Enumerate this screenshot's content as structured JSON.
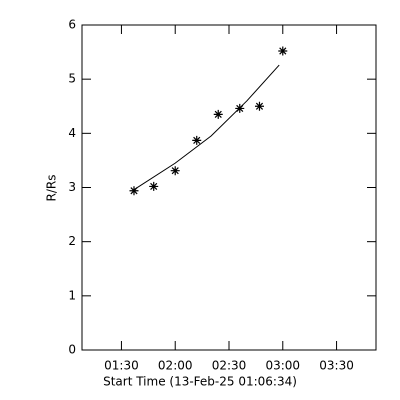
{
  "chart_data": {
    "type": "scatter",
    "xlabel": "Start Time (13-Feb-25 01:06:34)",
    "ylabel": "R/Rs",
    "xlim": [
      68,
      232
    ],
    "ylim": [
      0,
      6
    ],
    "xticks": [
      {
        "value": 90,
        "label": "01:30"
      },
      {
        "value": 120,
        "label": "02:00"
      },
      {
        "value": 150,
        "label": "02:30"
      },
      {
        "value": 180,
        "label": "03:00"
      },
      {
        "value": 210,
        "label": "03:30"
      }
    ],
    "yticks": [
      0,
      1,
      2,
      3,
      4,
      5,
      6
    ],
    "series": [
      {
        "mode": "markers",
        "color": "#000000",
        "x": [
          97,
          108,
          120,
          132,
          144,
          156,
          167,
          180
        ],
        "values": [
          2.94,
          3.02,
          3.31,
          3.87,
          4.35,
          4.46,
          4.5,
          5.52
        ]
      },
      {
        "mode": "line",
        "color": "#000000",
        "x": [
          97,
          120,
          140,
          160,
          178
        ],
        "values": [
          2.96,
          3.45,
          3.95,
          4.6,
          5.26
        ]
      }
    ]
  }
}
